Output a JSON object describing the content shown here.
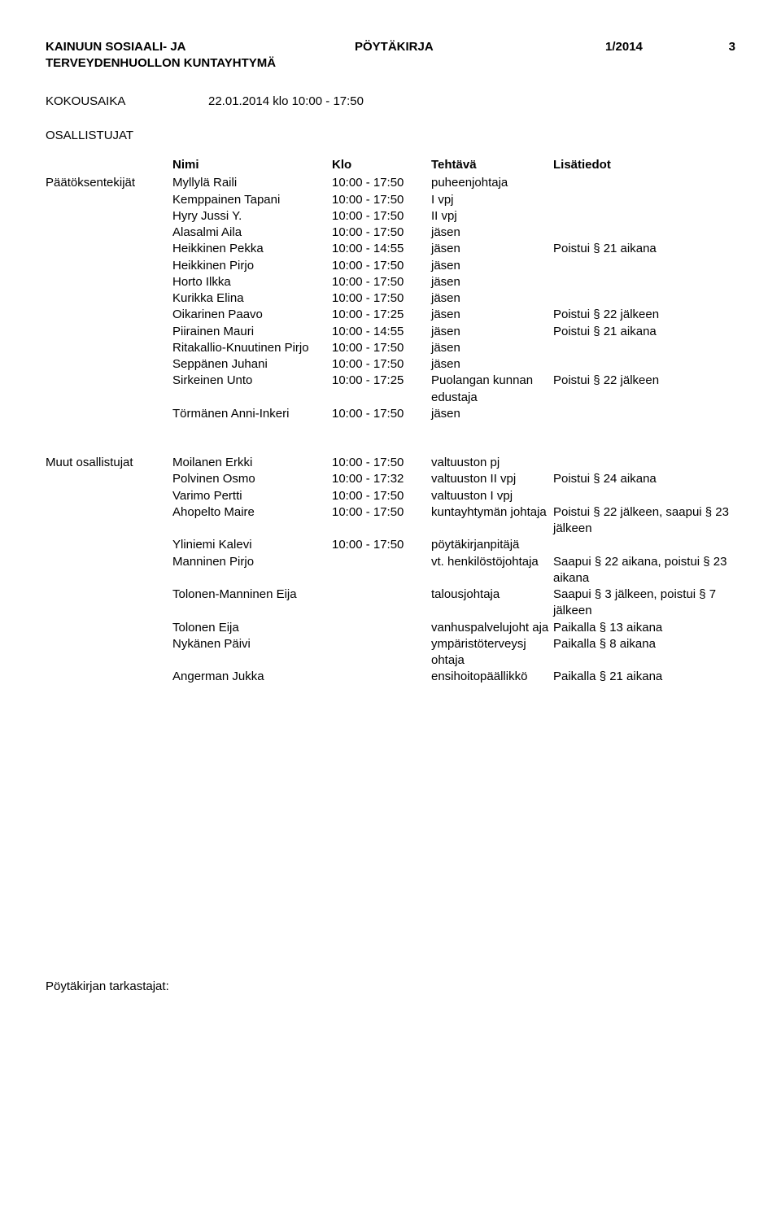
{
  "header": {
    "org_line1": "KAINUUN SOSIAALI- JA",
    "org_line2": "TERVEYDENHUOLLON KUNTAYHTYMÄ",
    "doc_type": "PÖYTÄKIRJA",
    "issue": "1/2014",
    "page_no": "3"
  },
  "kokousaika": {
    "label": "KOKOUSAIKA",
    "value": "22.01.2014 klo 10:00 - 17:50"
  },
  "osallistujat_label": "OSALLISTUJAT",
  "table_headers": {
    "name": "Nimi",
    "klo": "Klo",
    "task": "Tehtävä",
    "extra": "Lisätiedot"
  },
  "paatoksentekijat_label": "Päätöksentekijät",
  "paatoksentekijat": [
    {
      "name": "Myllylä Raili",
      "klo": "10:00 - 17:50",
      "task": "puheenjohtaja",
      "extra": ""
    },
    {
      "name": "Kemppainen Tapani",
      "klo": "10:00 - 17:50",
      "task": "I vpj",
      "extra": ""
    },
    {
      "name": "Hyry Jussi Y.",
      "klo": "10:00 - 17:50",
      "task": "II vpj",
      "extra": ""
    },
    {
      "name": "Alasalmi Aila",
      "klo": "10:00 - 17:50",
      "task": "jäsen",
      "extra": ""
    },
    {
      "name": "Heikkinen Pekka",
      "klo": "10:00 - 14:55",
      "task": "jäsen",
      "extra": "Poistui § 21 aikana"
    },
    {
      "name": "Heikkinen Pirjo",
      "klo": "10:00 - 17:50",
      "task": "jäsen",
      "extra": ""
    },
    {
      "name": "Horto Ilkka",
      "klo": "10:00 - 17:50",
      "task": "jäsen",
      "extra": ""
    },
    {
      "name": "Kurikka Elina",
      "klo": "10:00 - 17:50",
      "task": "jäsen",
      "extra": ""
    },
    {
      "name": "Oikarinen Paavo",
      "klo": "10:00 - 17:25",
      "task": "jäsen",
      "extra": "Poistui § 22 jälkeen"
    },
    {
      "name": "Piirainen Mauri",
      "klo": "10:00 - 14:55",
      "task": "jäsen",
      "extra": "Poistui § 21 aikana"
    },
    {
      "name": "Ritakallio-Knuutinen Pirjo",
      "klo": "10:00 - 17:50",
      "task": "jäsen",
      "extra": ""
    },
    {
      "name": "Seppänen Juhani",
      "klo": "10:00 - 17:50",
      "task": "jäsen",
      "extra": ""
    },
    {
      "name": "Sirkeinen Unto",
      "klo": "10:00 - 17:25",
      "task": "Puolangan kunnan edustaja",
      "extra": "Poistui § 22 jälkeen"
    },
    {
      "name": "Törmänen Anni-Inkeri",
      "klo": "10:00 - 17:50",
      "task": "jäsen",
      "extra": ""
    }
  ],
  "muut_label": "Muut osallistujat",
  "muut": [
    {
      "name": "Moilanen Erkki",
      "klo": "10:00 - 17:50",
      "task": "valtuuston pj",
      "extra": ""
    },
    {
      "name": "Polvinen Osmo",
      "klo": "10:00 - 17:32",
      "task": "valtuuston II vpj",
      "extra": "Poistui § 24 aikana"
    },
    {
      "name": "Varimo Pertti",
      "klo": "10:00 - 17:50",
      "task": "valtuuston I vpj",
      "extra": ""
    },
    {
      "name": "Ahopelto Maire",
      "klo": "10:00 - 17:50",
      "task": "kuntayhtymän johtaja",
      "extra": "Poistui § 22 jälkeen, saapui § 23 jälkeen"
    },
    {
      "name": "Yliniemi Kalevi",
      "klo": "10:00 - 17:50",
      "task": "pöytäkirjanpitäjä",
      "extra": ""
    },
    {
      "name": "Manninen Pirjo",
      "klo": "",
      "task": "vt. henkilöstöjohtaja",
      "extra": "Saapui § 22 aikana, poistui § 23 aikana"
    },
    {
      "name": "Tolonen-Manninen Eija",
      "klo": "",
      "task": "talousjohtaja",
      "extra": "Saapui § 3 jälkeen, poistui § 7 jälkeen"
    },
    {
      "name": "Tolonen Eija",
      "klo": "",
      "task": "vanhuspalvelujoht aja",
      "extra": "Paikalla § 13 aikana"
    },
    {
      "name": "Nykänen Päivi",
      "klo": "",
      "task": "ympäristöterveysj ohtaja",
      "extra": "Paikalla § 8 aikana"
    },
    {
      "name": "Angerman Jukka",
      "klo": "",
      "task": "ensihoitopäällikkö",
      "extra": "Paikalla § 21 aikana"
    }
  ],
  "footer": "Pöytäkirjan tarkastajat:"
}
